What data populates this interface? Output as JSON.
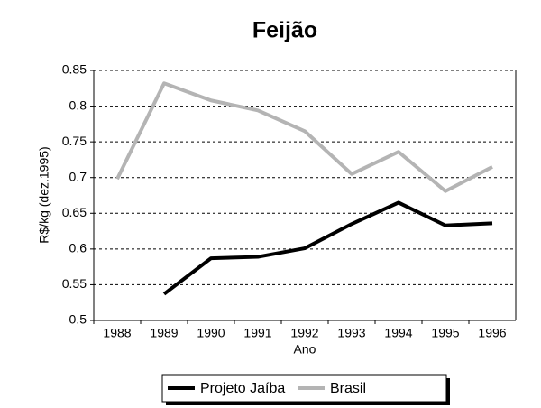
{
  "chart_data": {
    "type": "line",
    "title": "Feijão",
    "x_label": "Ano",
    "y_label": "R$/kg (dez.1995)",
    "categories": [
      "1988",
      "1989",
      "1990",
      "1991",
      "1992",
      "1993",
      "1994",
      "1995",
      "1996"
    ],
    "series": [
      {
        "name": "Projeto Jaíba",
        "color": "#000000",
        "values": [
          null,
          0.537,
          0.587,
          0.589,
          0.601,
          0.635,
          0.665,
          0.633,
          0.636
        ]
      },
      {
        "name": "Brasil",
        "color": "#b4b4b4",
        "values": [
          0.698,
          0.832,
          0.808,
          0.794,
          0.765,
          0.705,
          0.736,
          0.681,
          0.715
        ]
      }
    ],
    "ylim": [
      0.5,
      0.85
    ],
    "yticks": [
      0.5,
      0.55,
      0.6,
      0.65,
      0.7,
      0.75,
      0.8,
      0.85
    ],
    "grid": true
  }
}
